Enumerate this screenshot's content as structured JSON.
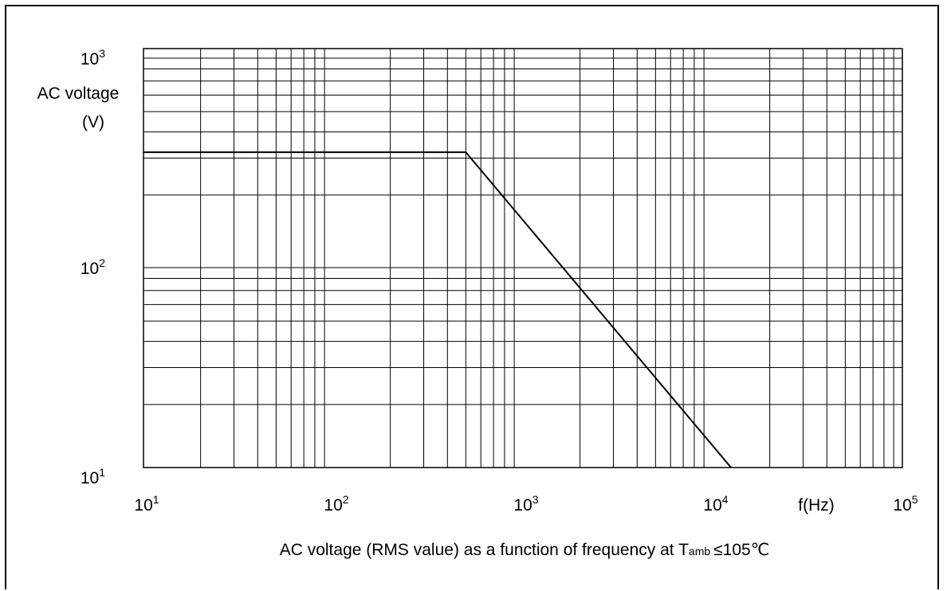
{
  "chart_data": {
    "type": "line",
    "x_scale": "log",
    "y_scale": "log",
    "xlim": [
      10,
      100000
    ],
    "ylim": [
      10,
      1000
    ],
    "grid": true,
    "x": [
      10,
      500,
      12500
    ],
    "series": [
      {
        "values": [
          320,
          320,
          10
        ]
      }
    ],
    "x_ticks": [
      {
        "value": 10,
        "base": "10",
        "exp": "1"
      },
      {
        "value": 100,
        "base": "10",
        "exp": "2"
      },
      {
        "value": 1000,
        "base": "10",
        "exp": "3"
      },
      {
        "value": 10000,
        "base": "10",
        "exp": "4"
      },
      {
        "value": 100000,
        "base": "10",
        "exp": "5"
      }
    ],
    "y_ticks": [
      {
        "value": 10,
        "base": "10",
        "exp": "1"
      },
      {
        "value": 100,
        "base": "10",
        "exp": "2"
      },
      {
        "value": 1000,
        "base": "10",
        "exp": "3"
      }
    ],
    "ylabel_line1": "AC voltage",
    "ylabel_line2": "(V)",
    "xlabel": "f(Hz)",
    "caption": {
      "before": "AC voltage (RMS value) as a function of frequency at T",
      "sub": "amb",
      "after": "≤105℃"
    },
    "line_color": "#000000"
  }
}
